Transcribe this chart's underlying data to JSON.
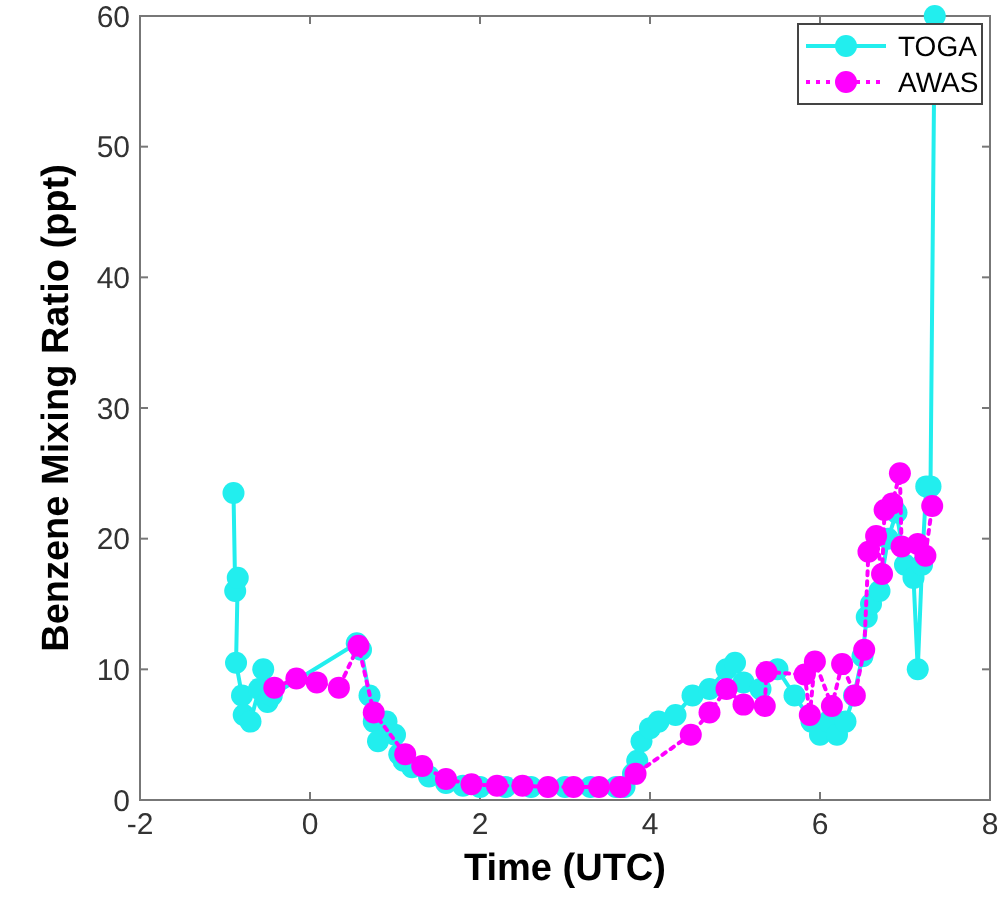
{
  "chart_data": {
    "type": "line",
    "xlabel": "Time (UTC)",
    "ylabel": "Benzene Mixing Ratio (ppt)",
    "xlim": [
      -2,
      8
    ],
    "ylim": [
      0,
      60
    ],
    "xticks": [
      -2,
      0,
      2,
      4,
      6,
      8
    ],
    "yticks": [
      0,
      10,
      20,
      30,
      40,
      50,
      60
    ],
    "legend": "top right",
    "marker": "circle",
    "grid": false,
    "series": [
      {
        "name": "TOGA",
        "color": "#22eeee",
        "line_style": "solid",
        "x": [
          -0.9,
          -0.88,
          -0.85,
          -0.87,
          -0.8,
          -0.78,
          -0.7,
          -0.6,
          -0.55,
          -0.5,
          -0.45,
          0.55,
          0.6,
          0.7,
          0.75,
          0.8,
          0.9,
          1.0,
          1.05,
          1.1,
          1.2,
          1.4,
          1.6,
          1.8,
          2.0,
          2.3,
          2.6,
          3.0,
          3.3,
          3.6,
          3.7,
          3.8,
          3.85,
          3.9,
          4.0,
          4.1,
          4.3,
          4.5,
          4.7,
          4.9,
          5.0,
          5.1,
          5.3,
          5.5,
          5.7,
          5.9,
          6.0,
          6.1,
          6.2,
          6.3,
          6.4,
          6.5,
          6.55,
          6.6,
          6.7,
          6.8,
          6.9,
          7.0,
          7.1,
          7.15,
          7.2,
          7.25,
          7.3,
          7.35
        ],
        "values": [
          23.5,
          16,
          17,
          10.5,
          8,
          6.5,
          6,
          8.5,
          10,
          7.5,
          8,
          12,
          11.5,
          8,
          6,
          4.5,
          6,
          5,
          3.5,
          3,
          2.5,
          1.8,
          1.3,
          1.1,
          1,
          1,
          1,
          1,
          1,
          1,
          1,
          2,
          3,
          4.5,
          5.5,
          6,
          6.5,
          8,
          8.5,
          10,
          10.5,
          9,
          8.5,
          10,
          8,
          6,
          5,
          6,
          5,
          6,
          8,
          11,
          14,
          15,
          16,
          20,
          22,
          18,
          17,
          10,
          18,
          24,
          24,
          60
        ]
      },
      {
        "name": "AWAS",
        "color": "#ff00ff",
        "line_style": "dotted",
        "x": [
          -0.42,
          -0.16,
          0.08,
          0.34,
          0.57,
          0.75,
          1.12,
          1.32,
          1.6,
          1.9,
          2.2,
          2.5,
          2.8,
          3.1,
          3.4,
          3.65,
          3.83,
          4.48,
          4.7,
          4.9,
          5.1,
          5.35,
          5.37,
          5.82,
          5.88,
          5.94,
          6.14,
          6.26,
          6.41,
          6.52,
          6.57,
          6.66,
          6.73,
          6.76,
          6.85,
          6.94,
          6.96,
          7.15,
          7.24,
          7.32
        ],
        "values": [
          8.6,
          9.3,
          9.0,
          8.6,
          11.8,
          6.7,
          3.5,
          2.6,
          1.6,
          1.2,
          1.1,
          1.1,
          1.0,
          1.0,
          1.0,
          1.0,
          2.0,
          5.0,
          6.7,
          8.5,
          7.3,
          7.2,
          9.8,
          9.6,
          6.5,
          10.6,
          7.2,
          10.4,
          8.0,
          11.5,
          19,
          20.2,
          17.3,
          22.2,
          22.7,
          25,
          19.4,
          19.6,
          18.7,
          22.5
        ]
      }
    ]
  }
}
